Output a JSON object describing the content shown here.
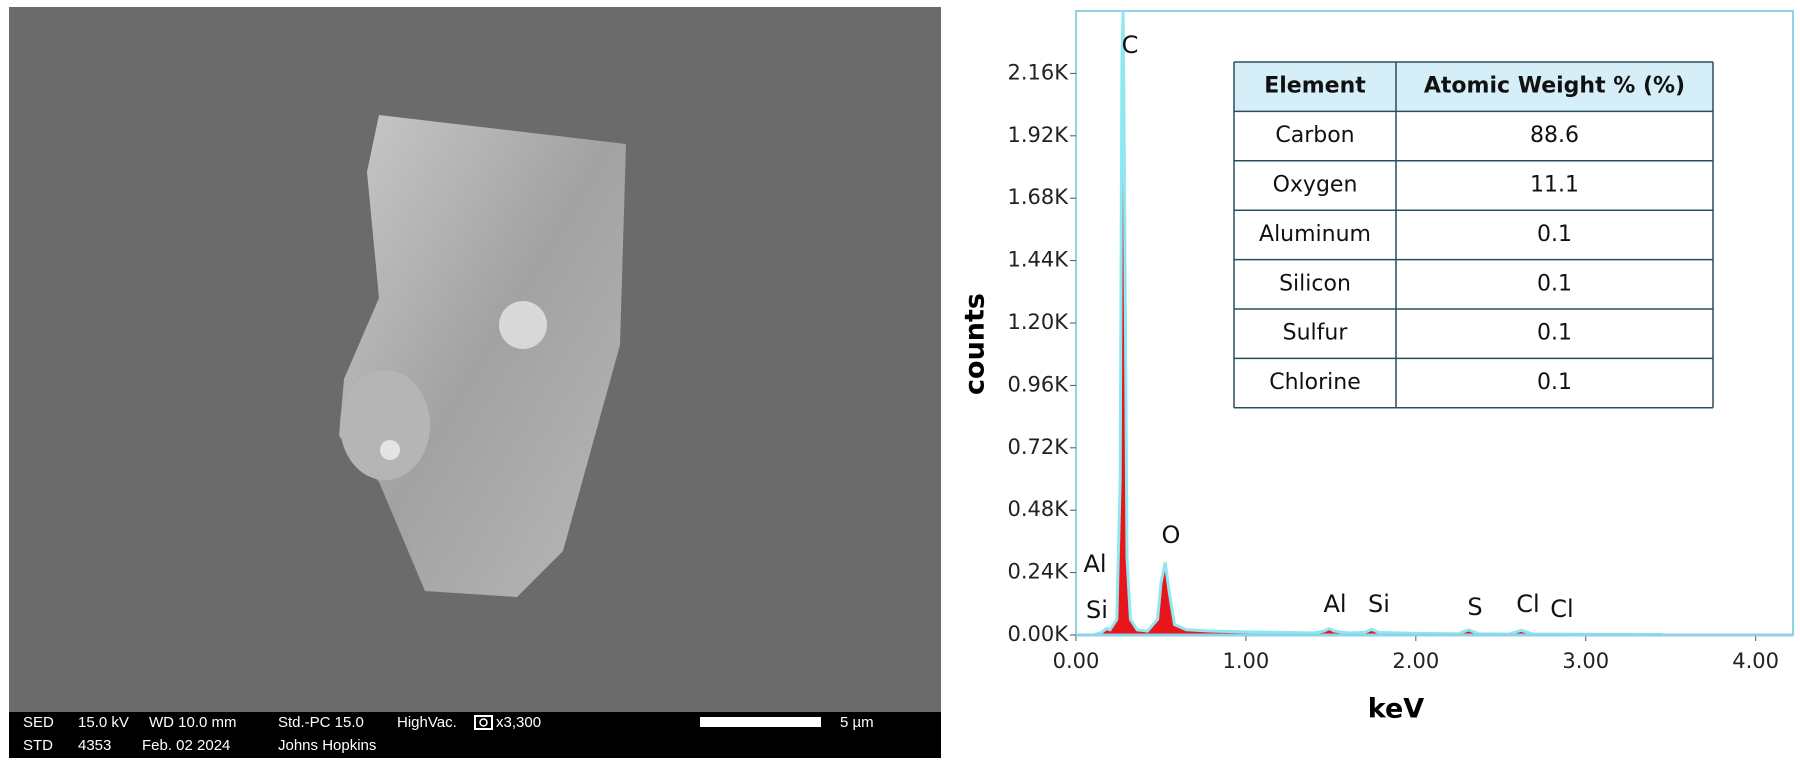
{
  "sem_panel": {
    "info_bar": {
      "row1": [
        "SED",
        "15.0 kV",
        "WD 10.0 mm",
        "Std.-PC 15.0",
        "HighVac.",
        "x3,300"
      ],
      "row2": [
        "STD",
        "4353",
        "Feb. 02 2024",
        "Johns Hopkins"
      ],
      "scale_label": "5 µm"
    }
  },
  "chart_data": {
    "type": "area",
    "xlabel": "keV",
    "ylabel": "counts",
    "x": [
      0.1,
      0.15,
      0.18,
      0.2,
      0.24,
      0.26,
      0.27,
      0.277,
      0.285,
      0.3,
      0.32,
      0.36,
      0.42,
      0.48,
      0.5,
      0.525,
      0.55,
      0.58,
      0.65,
      0.8,
      1.0,
      1.2,
      1.4,
      1.46,
      1.49,
      1.52,
      1.6,
      1.7,
      1.74,
      1.78,
      2.0,
      2.25,
      2.31,
      2.37,
      2.55,
      2.62,
      2.69,
      3.0,
      3.45
    ],
    "values": [
      0,
      10,
      25,
      20,
      60,
      600,
      2200,
      2400,
      1800,
      300,
      60,
      20,
      15,
      60,
      200,
      279,
      160,
      40,
      20,
      15,
      12,
      10,
      8,
      15,
      25,
      15,
      8,
      10,
      22,
      10,
      6,
      5,
      20,
      5,
      4,
      18,
      4,
      3,
      2
    ],
    "color": "#e8161b",
    "line_color": "#8ee8f2",
    "xlim": [
      0,
      4.22
    ],
    "ylim": [
      0,
      2400
    ],
    "xticks": [
      {
        "value": 0,
        "label": "0.00"
      },
      {
        "value": 1,
        "label": "1.00"
      },
      {
        "value": 2,
        "label": "2.00"
      },
      {
        "value": 3,
        "label": "3.00"
      },
      {
        "value": 4,
        "label": "4.00"
      }
    ],
    "yticks": [
      {
        "value": 0,
        "label": "0.00K"
      },
      {
        "value": 240,
        "label": "0.24K"
      },
      {
        "value": 480,
        "label": "0.48K"
      },
      {
        "value": 720,
        "label": "0.72K"
      },
      {
        "value": 960,
        "label": "0.96K"
      },
      {
        "value": 1200,
        "label": "1.20K"
      },
      {
        "value": 1440,
        "label": "1.44K"
      },
      {
        "value": 1680,
        "label": "1.68K"
      },
      {
        "value": 1920,
        "label": "1.92K"
      },
      {
        "value": 2160,
        "label": "2.16K"
      }
    ],
    "annotations": [
      "C",
      "O",
      "Al",
      "Si",
      "Al",
      "Si",
      "S",
      "Cl",
      "Cl"
    ]
  },
  "table": {
    "header": [
      "Element",
      "Atomic Weight % (%)"
    ],
    "rows": [
      [
        "Carbon",
        88.6
      ],
      [
        "Oxygen",
        11.1
      ],
      [
        "Aluminum",
        0.1
      ],
      [
        "Silicon",
        0.1
      ],
      [
        "Sulfur",
        0.1
      ],
      [
        "Chlorine",
        0.1
      ]
    ]
  }
}
